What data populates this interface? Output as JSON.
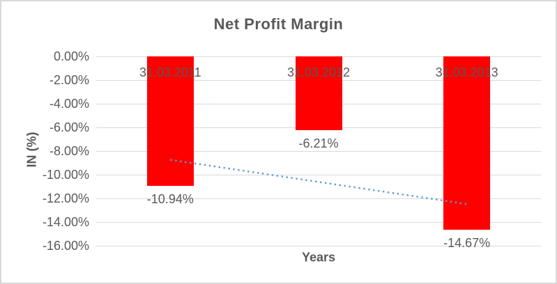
{
  "chart": {
    "title": "Net Profit Margin",
    "x_axis_title": "Years",
    "y_axis_title": "IN (%)"
  },
  "chart_data": {
    "type": "bar",
    "title": "Net Profit Margin",
    "xlabel": "Years",
    "ylabel": "IN (%)",
    "categories": [
      "31.03.2011",
      "31.03.2012",
      "31.03.2013"
    ],
    "values": [
      -10.94,
      -6.21,
      -14.67
    ],
    "data_labels": [
      "-10.94%",
      "-6.21%",
      "-14.67%"
    ],
    "y_tick_labels": [
      "0.00%",
      "-2.00%",
      "-4.00%",
      "-6.00%",
      "-8.00%",
      "-10.00%",
      "-12.00%",
      "-14.00%",
      "-16.00%"
    ],
    "y_tick_values": [
      0,
      -2,
      -4,
      -6,
      -8,
      -10,
      -12,
      -14,
      -16
    ],
    "ylim": [
      -16,
      0
    ],
    "grid": true,
    "legend": "none",
    "bar_color": "#FF0000",
    "trendline": {
      "type": "linear",
      "style": "dotted",
      "color": "#5B9BD5",
      "start_value": -8.74,
      "end_value": -12.48
    },
    "colors": {
      "text": "#595959",
      "gridline": "#D9D9D9",
      "border": "#D8D8D8",
      "background": "#FFFFFF"
    }
  }
}
